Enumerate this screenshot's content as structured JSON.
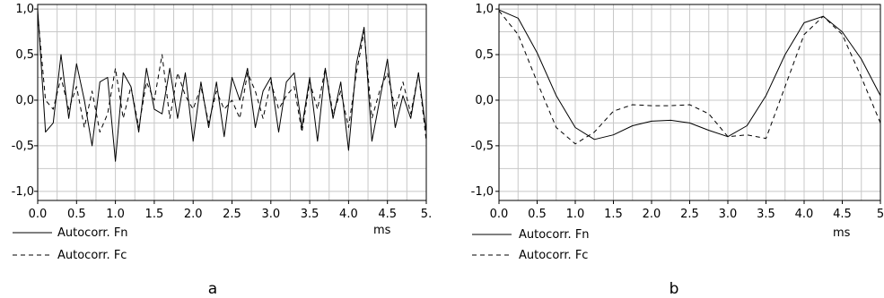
{
  "chart_data": [
    {
      "type": "line",
      "panel_label": "a",
      "x_unit_label": "ms",
      "xlim": [
        0,
        5
      ],
      "ylim": [
        -1.1,
        1.05
      ],
      "x_ticks": [
        "0.0",
        "0.5",
        "1.0",
        "1.5",
        "2.0",
        "2.5",
        "3.0",
        "3.5",
        "4.0",
        "4.5",
        "5."
      ],
      "y_ticks": [
        "1,0",
        "0,5",
        "0,0",
        "-0,5",
        "-1,0"
      ],
      "grid": true,
      "legend": "below-left",
      "series": [
        {
          "name": "Autocorr. Fn",
          "style": "solid",
          "x": [
            0,
            0.1,
            0.2,
            0.3,
            0.4,
            0.5,
            0.6,
            0.7,
            0.8,
            0.9,
            1.0,
            1.1,
            1.2,
            1.3,
            1.4,
            1.5,
            1.6,
            1.7,
            1.8,
            1.9,
            2.0,
            2.1,
            2.2,
            2.3,
            2.4,
            2.5,
            2.6,
            2.7,
            2.8,
            2.9,
            3.0,
            3.1,
            3.2,
            3.3,
            3.4,
            3.5,
            3.6,
            3.7,
            3.8,
            3.9,
            4.0,
            4.1,
            4.2,
            4.3,
            4.4,
            4.5,
            4.6,
            4.7,
            4.8,
            4.9,
            5.0
          ],
          "values": [
            1.0,
            -0.35,
            -0.25,
            0.5,
            -0.2,
            0.4,
            0.0,
            -0.5,
            0.2,
            0.25,
            -0.67,
            0.3,
            0.15,
            -0.35,
            0.35,
            -0.1,
            -0.15,
            0.35,
            -0.2,
            0.3,
            -0.45,
            0.2,
            -0.3,
            0.2,
            -0.4,
            0.25,
            0.0,
            0.35,
            -0.3,
            0.1,
            0.25,
            -0.35,
            0.2,
            0.3,
            -0.3,
            0.25,
            -0.45,
            0.35,
            -0.2,
            0.2,
            -0.55,
            0.4,
            0.8,
            -0.45,
            0.0,
            0.45,
            -0.3,
            0.05,
            -0.2,
            0.3,
            -0.35
          ]
        },
        {
          "name": "Autocorr. Fc",
          "style": "dashed",
          "x": [
            0,
            0.1,
            0.2,
            0.3,
            0.4,
            0.5,
            0.6,
            0.7,
            0.8,
            0.9,
            1.0,
            1.1,
            1.2,
            1.3,
            1.4,
            1.5,
            1.6,
            1.7,
            1.8,
            1.9,
            2.0,
            2.1,
            2.2,
            2.3,
            2.4,
            2.5,
            2.6,
            2.7,
            2.8,
            2.9,
            3.0,
            3.1,
            3.2,
            3.3,
            3.4,
            3.5,
            3.6,
            3.7,
            3.8,
            3.9,
            4.0,
            4.1,
            4.2,
            4.3,
            4.4,
            4.5,
            4.6,
            4.7,
            4.8,
            4.9,
            5.0
          ],
          "values": [
            0.95,
            0.0,
            -0.1,
            0.25,
            -0.1,
            0.15,
            -0.3,
            0.1,
            -0.35,
            -0.15,
            0.35,
            -0.2,
            0.15,
            -0.3,
            0.2,
            0.0,
            0.5,
            -0.2,
            0.3,
            0.05,
            -0.1,
            0.15,
            -0.25,
            0.1,
            -0.1,
            0.0,
            -0.2,
            0.3,
            0.1,
            -0.2,
            0.2,
            -0.1,
            0.05,
            0.15,
            -0.35,
            0.2,
            -0.1,
            0.35,
            -0.15,
            0.1,
            -0.3,
            0.3,
            0.75,
            -0.2,
            0.1,
            0.3,
            -0.1,
            0.2,
            -0.15,
            0.3,
            -0.45
          ]
        }
      ]
    },
    {
      "type": "line",
      "panel_label": "b",
      "x_unit_label": "ms",
      "xlim": [
        0,
        5
      ],
      "ylim": [
        -1.1,
        1.05
      ],
      "x_ticks": [
        "0.0",
        "0.5",
        "1.0",
        "1.5",
        "2.0",
        "2.5",
        "3.0",
        "3.5",
        "4.0",
        "4.5",
        "5"
      ],
      "y_ticks": [
        "1,0",
        "0,5",
        "0,0",
        "-0,5",
        "-1,0"
      ],
      "grid": true,
      "legend": "below-left",
      "series": [
        {
          "name": "Autocorr. Fn",
          "style": "solid",
          "x": [
            0,
            0.25,
            0.5,
            0.75,
            1.0,
            1.25,
            1.5,
            1.75,
            2.0,
            2.25,
            2.5,
            2.75,
            3.0,
            3.25,
            3.5,
            3.75,
            4.0,
            4.25,
            4.5,
            4.75,
            5.0
          ],
          "values": [
            0.99,
            0.9,
            0.52,
            0.05,
            -0.3,
            -0.43,
            -0.38,
            -0.28,
            -0.23,
            -0.22,
            -0.25,
            -0.33,
            -0.4,
            -0.28,
            0.05,
            0.5,
            0.85,
            0.92,
            0.75,
            0.45,
            0.05
          ]
        },
        {
          "name": "Autocorr. Fc",
          "style": "dashed",
          "x": [
            0,
            0.25,
            0.5,
            0.75,
            1.0,
            1.25,
            1.5,
            1.75,
            2.0,
            2.25,
            2.5,
            2.75,
            3.0,
            3.25,
            3.5,
            3.75,
            4.0,
            4.25,
            4.5,
            4.75,
            5.0
          ],
          "values": [
            0.98,
            0.72,
            0.2,
            -0.3,
            -0.48,
            -0.35,
            -0.12,
            -0.05,
            -0.06,
            -0.06,
            -0.05,
            -0.15,
            -0.4,
            -0.38,
            -0.42,
            0.15,
            0.72,
            0.92,
            0.72,
            0.25,
            -0.25
          ]
        }
      ]
    }
  ]
}
